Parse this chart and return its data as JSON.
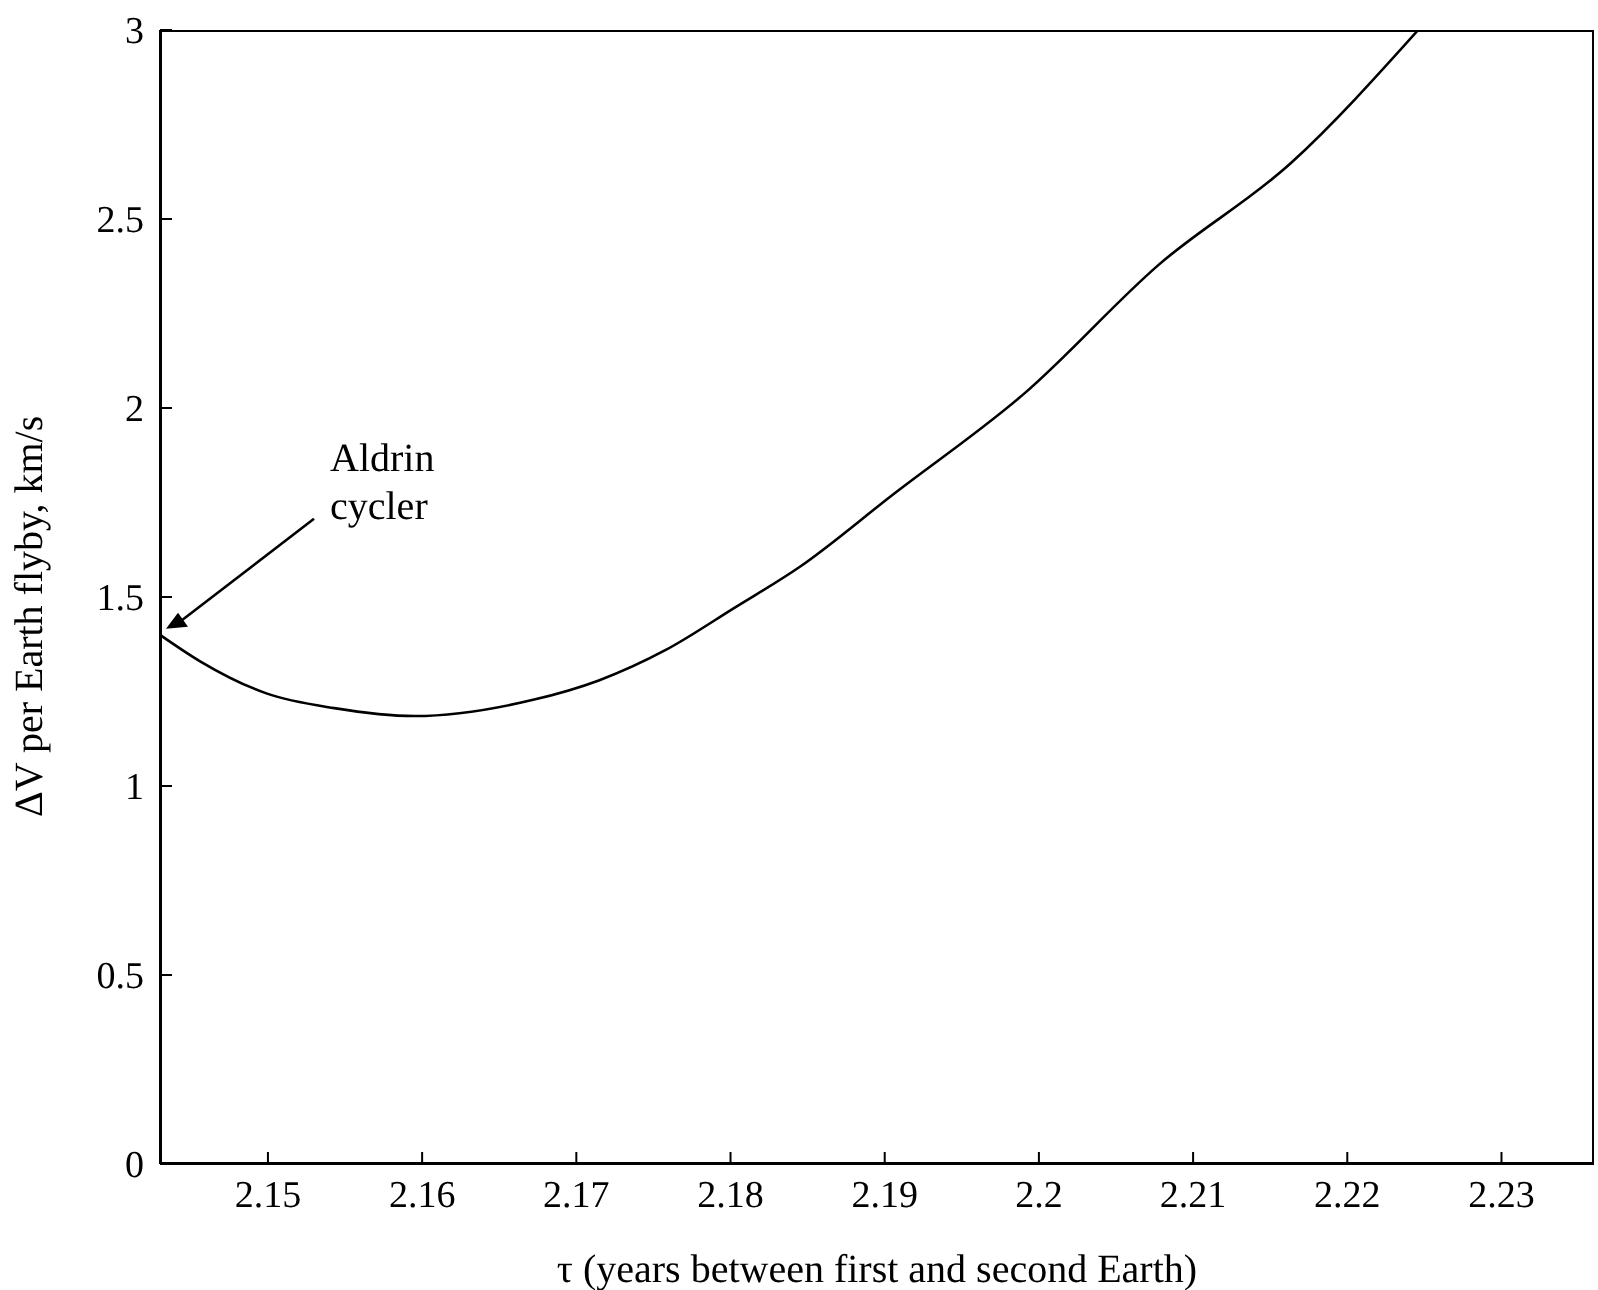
{
  "chart_data": {
    "type": "line",
    "xlabel": "τ (years between first and second Earth)",
    "ylabel": "ΔV per Earth flyby, km/s",
    "x": [
      2.143,
      2.1456,
      2.1499,
      2.1543,
      2.1595,
      2.1672,
      2.1715,
      2.1758,
      2.1802,
      2.1845,
      2.1905,
      2.1991,
      2.2078,
      2.2164,
      2.2246
    ],
    "series": [
      {
        "color": "#000000",
        "values": [
          1.4,
          1.33,
          1.245,
          1.206,
          1.185,
          1.228,
          1.28,
          1.36,
          1.47,
          1.58,
          1.77,
          2.04,
          2.38,
          2.65,
          3.0
        ]
      }
    ],
    "xlim": [
      2.143,
      2.236
    ],
    "xticks": [
      2.15,
      2.16,
      2.17,
      2.18,
      2.19,
      2.2,
      2.21,
      2.22,
      2.23
    ],
    "ylim": [
      0,
      3
    ],
    "yticks": [
      0,
      0.5,
      1,
      1.5,
      2,
      2.5,
      3
    ],
    "annotations": [
      "Aldrin cycler"
    ],
    "grid": false,
    "legend": false,
    "marker": "none",
    "line_style": "solid"
  }
}
